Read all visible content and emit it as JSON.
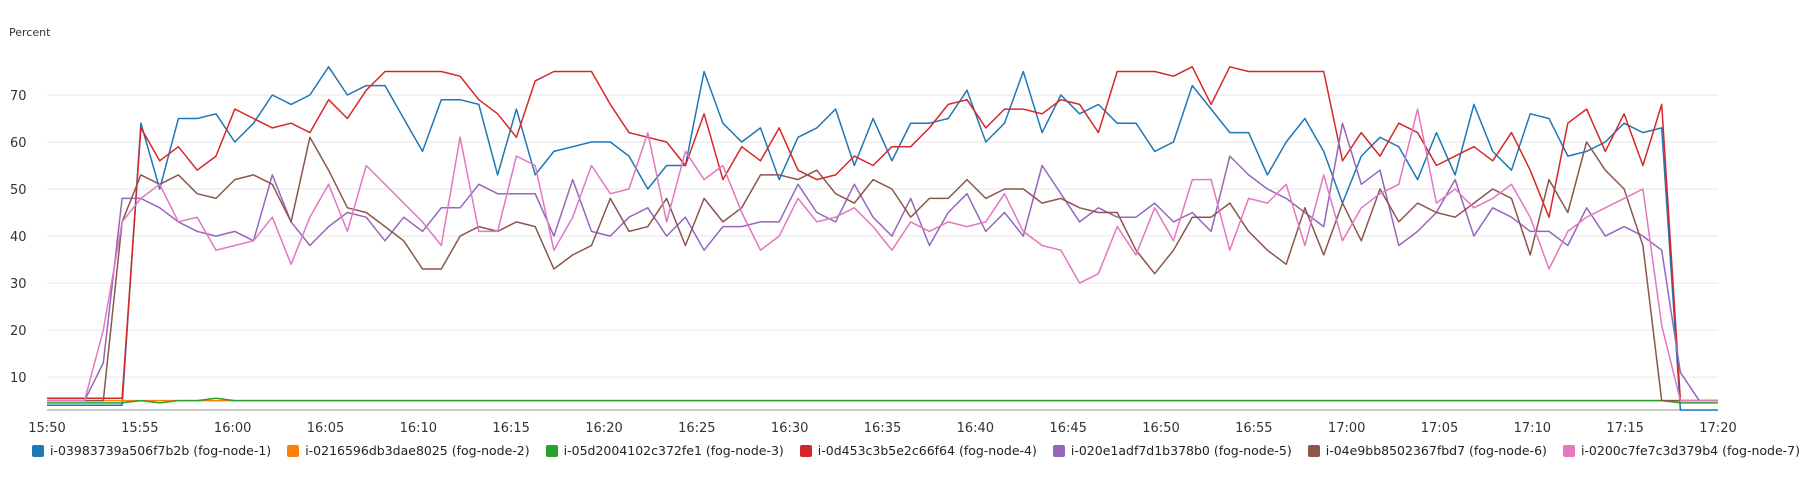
{
  "chart_data": {
    "type": "line",
    "ylabel": "Percent",
    "ylim": [
      3,
      80
    ],
    "yticks": [
      10,
      20,
      30,
      40,
      50,
      60,
      70
    ],
    "xticks": [
      "15:50",
      "15:55",
      "16:00",
      "16:05",
      "16:10",
      "16:15",
      "16:20",
      "16:25",
      "16:30",
      "16:35",
      "16:40",
      "16:45",
      "16:50",
      "16:55",
      "17:00",
      "17:05",
      "17:10",
      "17:15",
      "17:20"
    ],
    "x_start": "15:50",
    "x_end": "17:20",
    "grid": "horizontal",
    "legend_position": "bottom",
    "series": [
      {
        "name": "i-03983739a506f7b2b (fog-node-1)",
        "color": "#1f77b4",
        "values": [
          4,
          4,
          4,
          4,
          4,
          64,
          50,
          65,
          65,
          66,
          60,
          64,
          70,
          68,
          70,
          76,
          70,
          72,
          72,
          65,
          58,
          69,
          69,
          68,
          53,
          67,
          53,
          58,
          59,
          60,
          60,
          57,
          50,
          55,
          55,
          75,
          64,
          60,
          63,
          52,
          61,
          63,
          67,
          55,
          65,
          56,
          64,
          64,
          65,
          71,
          60,
          64,
          75,
          62,
          70,
          66,
          68,
          64,
          64,
          58,
          60,
          72,
          67,
          62,
          62,
          53,
          60,
          65,
          58,
          47,
          57,
          61,
          59,
          52,
          62,
          53,
          68,
          58,
          54,
          66,
          65,
          57,
          58,
          60,
          64,
          62,
          63,
          3,
          3,
          3
        ]
      },
      {
        "name": "i-0216596db3dae8025 (fog-node-2)",
        "color": "#ff7f0e",
        "values": [
          5,
          5,
          5,
          5,
          5,
          5,
          5,
          5,
          5,
          5,
          5,
          5,
          5,
          5,
          5,
          5,
          5,
          5,
          5,
          5,
          5,
          5,
          5,
          5,
          5,
          5,
          5,
          5,
          5,
          5,
          5,
          5,
          5,
          5,
          5,
          5,
          5,
          5,
          5,
          5,
          5,
          5,
          5,
          5,
          5,
          5,
          5,
          5,
          5,
          5,
          5,
          5,
          5,
          5,
          5,
          5,
          5,
          5,
          5,
          5,
          5,
          5,
          5,
          5,
          5,
          5,
          5,
          5,
          5,
          5,
          5,
          5,
          5,
          5,
          5,
          5,
          5,
          5,
          5,
          5,
          5,
          5,
          5,
          5,
          5,
          5,
          5,
          5,
          5,
          5
        ]
      },
      {
        "name": "i-05d2004102c372fe1 (fog-node-3)",
        "color": "#2ca02c",
        "values": [
          4.5,
          4.5,
          4.5,
          4.5,
          4.5,
          5,
          4.5,
          5,
          5,
          5.5,
          5,
          5,
          5,
          5,
          5,
          5,
          5,
          5,
          5,
          5,
          5,
          5,
          5,
          5,
          5,
          5,
          5,
          5,
          5,
          5,
          5,
          5,
          5,
          5,
          5,
          5,
          5,
          5,
          5,
          5,
          5,
          5,
          5,
          5,
          5,
          5,
          5,
          5,
          5,
          5,
          5,
          5,
          5,
          5,
          5,
          5,
          5,
          5,
          5,
          5,
          5,
          5,
          5,
          5,
          5,
          5,
          5,
          5,
          5,
          5,
          5,
          5,
          5,
          5,
          5,
          5,
          5,
          5,
          5,
          5,
          5,
          5,
          5,
          5,
          5,
          5,
          5,
          4.5,
          4.5,
          4.5
        ]
      },
      {
        "name": "i-0d453c3b5e2c66f64 (fog-node-4)",
        "color": "#d62728",
        "values": [
          5.5,
          5.5,
          5.5,
          5.5,
          5.5,
          63,
          56,
          59,
          54,
          57,
          67,
          65,
          63,
          64,
          62,
          69,
          65,
          71,
          75,
          75,
          75,
          75,
          74,
          69,
          66,
          61,
          73,
          75,
          75,
          75,
          68,
          62,
          61,
          60,
          55,
          66,
          52,
          59,
          56,
          63,
          54,
          52,
          53,
          57,
          55,
          59,
          59,
          63,
          68,
          69,
          63,
          67,
          67,
          66,
          69,
          68,
          62,
          75,
          75,
          75,
          74,
          76,
          68,
          76,
          75,
          75,
          75,
          75,
          75,
          56,
          62,
          57,
          64,
          62,
          55,
          57,
          59,
          56,
          62,
          54,
          44,
          64,
          67,
          58,
          66,
          55,
          68,
          5,
          5,
          5
        ]
      },
      {
        "name": "i-020e1adf7d1b378b0 (fog-node-5)",
        "color": "#9467bd",
        "values": [
          5,
          5,
          5,
          13,
          48,
          48,
          46,
          43,
          41,
          40,
          41,
          39,
          53,
          43,
          38,
          42,
          45,
          44,
          39,
          44,
          41,
          46,
          46,
          51,
          49,
          49,
          49,
          40,
          52,
          41,
          40,
          44,
          46,
          40,
          44,
          37,
          42,
          42,
          43,
          43,
          51,
          45,
          43,
          51,
          44,
          40,
          48,
          38,
          45,
          49,
          41,
          45,
          40,
          55,
          49,
          43,
          46,
          44,
          44,
          47,
          43,
          45,
          41,
          57,
          53,
          50,
          48,
          45,
          42,
          64,
          51,
          54,
          38,
          41,
          45,
          52,
          40,
          46,
          44,
          41,
          41,
          38,
          46,
          40,
          42,
          40,
          37,
          11,
          5,
          5
        ]
      },
      {
        "name": "i-04e9bb8502367fbd7 (fog-node-6)",
        "color": "#8c564b",
        "values": [
          5,
          5,
          5,
          5,
          43,
          53,
          51,
          53,
          49,
          48,
          52,
          53,
          51,
          43,
          61,
          54,
          46,
          45,
          42,
          39,
          33,
          33,
          40,
          42,
          41,
          43,
          42,
          33,
          36,
          38,
          48,
          41,
          42,
          48,
          38,
          48,
          43,
          46,
          53,
          53,
          52,
          54,
          49,
          47,
          52,
          50,
          44,
          48,
          48,
          52,
          48,
          50,
          50,
          47,
          48,
          46,
          45,
          45,
          37,
          32,
          37,
          44,
          44,
          47,
          41,
          37,
          34,
          46,
          36,
          47,
          39,
          50,
          43,
          47,
          45,
          44,
          47,
          50,
          48,
          36,
          52,
          45,
          60,
          54,
          50,
          38,
          5,
          5,
          5,
          5
        ]
      },
      {
        "name": "i-0200c7fe7c3d379b4 (fog-node-7)",
        "color": "#e377c2",
        "values": [
          5,
          5,
          5,
          20,
          43,
          48,
          51,
          43,
          44,
          37,
          38,
          39,
          44,
          34,
          44,
          51,
          41,
          55,
          51,
          47,
          43,
          38,
          61,
          41,
          41,
          57,
          55,
          37,
          44,
          55,
          49,
          50,
          62,
          43,
          58,
          52,
          55,
          45,
          37,
          40,
          48,
          43,
          44,
          46,
          42,
          37,
          43,
          41,
          43,
          42,
          43,
          49,
          41,
          38,
          37,
          30,
          32,
          42,
          36,
          46,
          39,
          52,
          52,
          37,
          48,
          47,
          51,
          38,
          53,
          39,
          46,
          49,
          51,
          67,
          47,
          50,
          46,
          48,
          51,
          44,
          33,
          41,
          44,
          46,
          48,
          50,
          21,
          5,
          5,
          5
        ]
      }
    ]
  }
}
